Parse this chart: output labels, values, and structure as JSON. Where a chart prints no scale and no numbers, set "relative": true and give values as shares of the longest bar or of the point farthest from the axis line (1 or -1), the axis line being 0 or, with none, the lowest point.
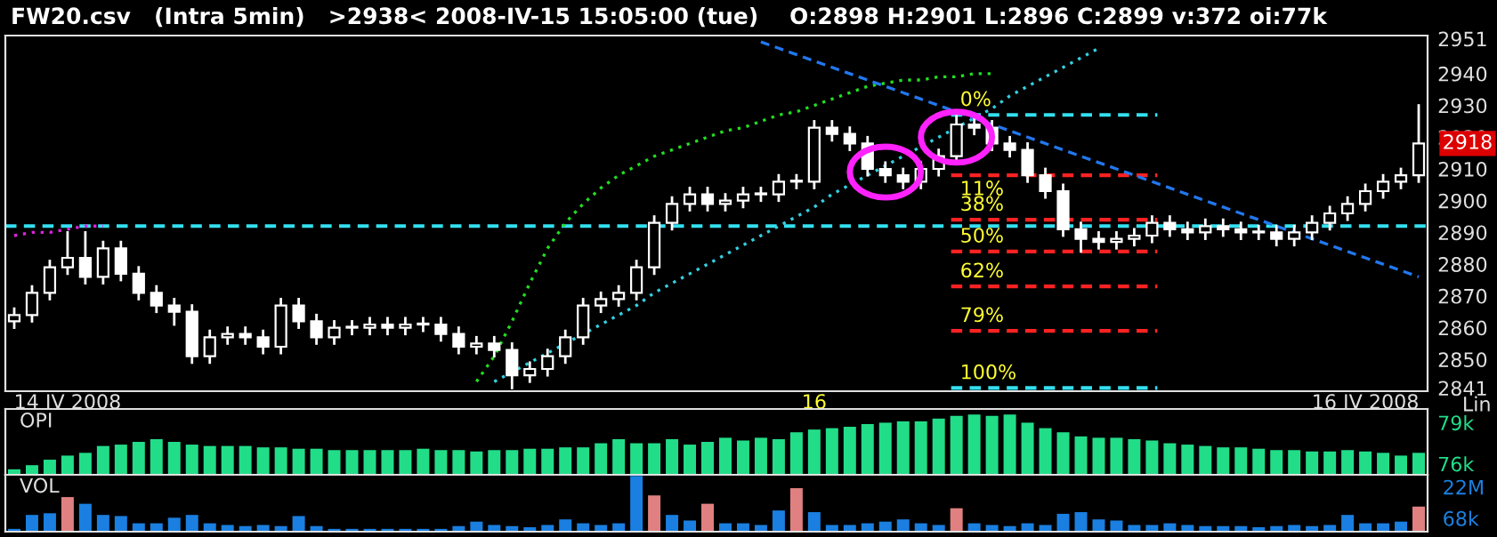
{
  "chart_data": [
    {
      "type": "candlestick",
      "title": "FW20.csv   (Intra 5min)   >2938< 2008-IV-15 15:05:00 (tue)    O:2898 H:2901 L:2896 C:2899 v:372 oi:77k",
      "categories": [
        null,
        null,
        null,
        "14 IV 2008",
        null,
        null,
        null,
        null,
        null,
        null,
        null,
        null,
        null,
        null,
        null,
        null,
        null,
        null,
        null,
        null,
        null,
        null,
        null,
        null,
        null,
        null,
        null,
        null,
        null,
        null,
        null,
        null,
        null,
        null,
        null,
        null,
        null,
        null,
        null,
        null,
        null,
        null,
        null,
        null,
        null,
        "16",
        null,
        null,
        null,
        null,
        null,
        null,
        null,
        null,
        null,
        null,
        null,
        null,
        null,
        null,
        null,
        null,
        null,
        null,
        null,
        null,
        null,
        null,
        null,
        null,
        null,
        null,
        null,
        null,
        null,
        null,
        "16 IV 2008",
        null,
        null,
        null
      ],
      "color": "#ffffff",
      "ohlc": [
        [
          2862,
          2866,
          2860,
          2864
        ],
        [
          2864,
          2873,
          2862,
          2871
        ],
        [
          2871,
          2881,
          2869,
          2879
        ],
        [
          2879,
          2890,
          2877,
          2882
        ],
        [
          2882,
          2890,
          2874,
          2876
        ],
        [
          2876,
          2887,
          2874,
          2885
        ],
        [
          2885,
          2887,
          2875,
          2877
        ],
        [
          2877,
          2879,
          2869,
          2871
        ],
        [
          2871,
          2873,
          2865,
          2867
        ],
        [
          2867,
          2869,
          2861,
          2865
        ],
        [
          2865,
          2867,
          2849,
          2851
        ],
        [
          2851,
          2859,
          2849,
          2857
        ],
        [
          2857,
          2860,
          2855,
          2858
        ],
        [
          2858,
          2860,
          2855,
          2857
        ],
        [
          2857,
          2859,
          2852,
          2854
        ],
        [
          2854,
          2869,
          2852,
          2867
        ],
        [
          2867,
          2869,
          2860,
          2862
        ],
        [
          2862,
          2864,
          2855,
          2857
        ],
        [
          2857,
          2862,
          2855,
          2860
        ],
        [
          2860,
          2862,
          2858,
          2860
        ],
        [
          2860,
          2863,
          2858,
          2861
        ],
        [
          2861,
          2863,
          2858,
          2860
        ],
        [
          2860,
          2863,
          2858,
          2861
        ],
        [
          2861,
          2863,
          2859,
          2861
        ],
        [
          2861,
          2863,
          2856,
          2858
        ],
        [
          2858,
          2860,
          2852,
          2854
        ],
        [
          2854,
          2857,
          2852,
          2855
        ],
        [
          2855,
          2857,
          2851,
          2853
        ],
        [
          2853,
          2855,
          2841,
          2845
        ],
        [
          2845,
          2849,
          2843,
          2847
        ],
        [
          2847,
          2853,
          2845,
          2851
        ],
        [
          2851,
          2859,
          2849,
          2857
        ],
        [
          2857,
          2869,
          2855,
          2867
        ],
        [
          2867,
          2871,
          2865,
          2869
        ],
        [
          2869,
          2873,
          2867,
          2871
        ],
        [
          2871,
          2881,
          2869,
          2879
        ],
        [
          2879,
          2895,
          2877,
          2893
        ],
        [
          2893,
          2901,
          2891,
          2899
        ],
        [
          2899,
          2904,
          2897,
          2902
        ],
        [
          2902,
          2904,
          2897,
          2899
        ],
        [
          2899,
          2902,
          2897,
          2900
        ],
        [
          2900,
          2904,
          2898,
          2902
        ],
        [
          2902,
          2904,
          2900,
          2902
        ],
        [
          2902,
          2908,
          2900,
          2906
        ],
        [
          2906,
          2908,
          2904,
          2906
        ],
        [
          2906,
          2925,
          2904,
          2923
        ],
        [
          2923,
          2925,
          2919,
          2921
        ],
        [
          2921,
          2923,
          2916,
          2918
        ],
        [
          2918,
          2920,
          2908,
          2910
        ],
        [
          2910,
          2912,
          2906,
          2908
        ],
        [
          2908,
          2910,
          2904,
          2906
        ],
        [
          2906,
          2912,
          2904,
          2910
        ],
        [
          2910,
          2916,
          2908,
          2914
        ],
        [
          2914,
          2928,
          2912,
          2924
        ],
        [
          2924,
          2926,
          2921,
          2923
        ],
        [
          2923,
          2925,
          2916,
          2918
        ],
        [
          2918,
          2920,
          2914,
          2916
        ],
        [
          2916,
          2918,
          2906,
          2908
        ],
        [
          2908,
          2910,
          2901,
          2903
        ],
        [
          2903,
          2905,
          2889,
          2891
        ],
        [
          2891,
          2893,
          2884,
          2888
        ],
        [
          2888,
          2890,
          2885,
          2887
        ],
        [
          2887,
          2890,
          2885,
          2888
        ],
        [
          2888,
          2891,
          2886,
          2889
        ],
        [
          2889,
          2895,
          2887,
          2893
        ],
        [
          2893,
          2895,
          2889,
          2891
        ],
        [
          2891,
          2893,
          2888,
          2890
        ],
        [
          2890,
          2894,
          2888,
          2892
        ],
        [
          2892,
          2894,
          2889,
          2891
        ],
        [
          2891,
          2893,
          2888,
          2890
        ],
        [
          2890,
          2892,
          2888,
          2890
        ],
        [
          2890,
          2892,
          2886,
          2888
        ],
        [
          2888,
          2892,
          2886,
          2890
        ],
        [
          2890,
          2895,
          2888,
          2893
        ],
        [
          2893,
          2898,
          2891,
          2896
        ],
        [
          2896,
          2901,
          2894,
          2899
        ],
        [
          2899,
          2905,
          2897,
          2903
        ],
        [
          2903,
          2908,
          2901,
          2906
        ],
        [
          2906,
          2910,
          2904,
          2908
        ],
        [
          2908,
          2930,
          2906,
          2918
        ]
      ],
      "series": [
        {
          "type": "line",
          "color": "#22dd22",
          "line_style": "dotted",
          "values": [
            null,
            null,
            null,
            null,
            null,
            null,
            null,
            null,
            null,
            null,
            null,
            null,
            null,
            null,
            null,
            null,
            null,
            null,
            null,
            null,
            null,
            null,
            null,
            null,
            null,
            null,
            2843,
            2851,
            2862,
            2874,
            2885,
            2893,
            2899,
            2904,
            2908,
            2911,
            2914,
            2916,
            2918,
            2920,
            2922,
            2923,
            2925,
            2927,
            2928,
            2930,
            2932,
            2934,
            2936,
            2937,
            2938,
            2938,
            2939,
            2939,
            2940,
            2940,
            null,
            null,
            null,
            null,
            null,
            null,
            null,
            null,
            null,
            null,
            null,
            null,
            null,
            null,
            null,
            null,
            null,
            null,
            null,
            null,
            null,
            null,
            null,
            null
          ]
        },
        {
          "type": "line",
          "color": "#33d0e0",
          "line_style": "dotted",
          "values": [
            null,
            null,
            null,
            null,
            null,
            null,
            null,
            null,
            null,
            null,
            null,
            null,
            null,
            null,
            null,
            null,
            null,
            null,
            null,
            null,
            null,
            null,
            null,
            null,
            null,
            null,
            null,
            2843,
            2846,
            2849,
            2852,
            2855,
            2858,
            2861,
            2864,
            2867,
            2871,
            2874,
            2877,
            2880,
            2883,
            2886,
            2889,
            2892,
            2895,
            2898,
            2902,
            2905,
            2908,
            2911,
            2914,
            2917,
            2920,
            2923,
            2926,
            2929,
            2933,
            2936,
            2939,
            2942,
            2945,
            2948,
            null,
            null,
            null,
            null,
            null,
            null,
            null,
            null,
            null,
            null,
            null,
            null,
            null,
            null,
            null,
            null,
            null,
            null
          ]
        },
        {
          "type": "line",
          "color": "#2277ee",
          "line_style": "dashed",
          "values": [
            null,
            null,
            null,
            null,
            null,
            null,
            null,
            null,
            null,
            null,
            null,
            null,
            null,
            null,
            null,
            null,
            null,
            null,
            null,
            null,
            null,
            null,
            null,
            null,
            null,
            null,
            null,
            null,
            null,
            null,
            null,
            null,
            null,
            null,
            null,
            null,
            null,
            null,
            null,
            null,
            null,
            null,
            2950,
            2948,
            2946,
            2944,
            2942,
            2940,
            2938,
            2936,
            2934,
            2932,
            2930,
            2928,
            2926,
            2924,
            2922,
            2920,
            2918,
            2916,
            2914,
            2912,
            2910,
            2908,
            2906,
            2904,
            2902,
            2900,
            2898,
            2896,
            2894,
            2892,
            2890,
            2888,
            2886,
            2884,
            2882,
            2880,
            2878,
            2876
          ]
        },
        {
          "type": "line",
          "color": "#dd22dd",
          "line_style": "dotted",
          "values": [
            2889,
            2890,
            2890,
            2891,
            2892,
            2892,
            null,
            null,
            null,
            null,
            null,
            null,
            null,
            null,
            null,
            null,
            null,
            null,
            null,
            null,
            null,
            null,
            null,
            null,
            null,
            null,
            null,
            null,
            null,
            null,
            null,
            null,
            null,
            null,
            null,
            null,
            null,
            null,
            null,
            null,
            null,
            null,
            null,
            null,
            null,
            null,
            null,
            null,
            null,
            null,
            null,
            null,
            null,
            null,
            null,
            null,
            null,
            null,
            null,
            null,
            null,
            null,
            null,
            null,
            null,
            null,
            null,
            null,
            null,
            null,
            null,
            null,
            null,
            null,
            null,
            null,
            null,
            null,
            null,
            null
          ]
        }
      ],
      "ylim": [
        2840,
        2952
      ],
      "yticks": [
        2841,
        2850,
        2860,
        2870,
        2880,
        2890,
        2900,
        2910,
        2920,
        2930,
        2940,
        2951
      ],
      "ref_lines": [
        {
          "axis": "y",
          "value": 2892,
          "color": "#33e0f0",
          "line_style": "dashed"
        },
        {
          "axis": "y",
          "value": 2927,
          "color": "#33e0f0",
          "line_style": "dashed"
        },
        {
          "axis": "y",
          "value": 2908,
          "color": "#ff2222",
          "line_style": "dashed"
        },
        {
          "axis": "y",
          "value": 2894,
          "color": "#ff2222",
          "line_style": "dashed"
        },
        {
          "axis": "y",
          "value": 2884,
          "color": "#ff2222",
          "line_style": "dashed"
        },
        {
          "axis": "y",
          "value": 2873,
          "color": "#ff2222",
          "line_style": "dashed"
        },
        {
          "axis": "y",
          "value": 2859,
          "color": "#ff2222",
          "line_style": "dashed"
        },
        {
          "axis": "y",
          "value": 2841,
          "color": "#33e0f0",
          "line_style": "dashed"
        }
      ],
      "annotations": [
        "Lin",
        "2918",
        {
          "text": "0%",
          "y": 2927
        },
        {
          "text": "11%",
          "y": 2908
        },
        {
          "text": "38%",
          "y": 2894
        },
        {
          "text": "50%",
          "y": 2884
        },
        {
          "text": "62%",
          "y": 2873
        },
        {
          "text": "79%",
          "y": 2859
        },
        {
          "text": "100%",
          "y": 2841
        }
      ]
    },
    {
      "type": "bar",
      "title": "OPI",
      "color": "#22dd88",
      "tick_labels": "y",
      "categories": [
        null,
        null,
        null,
        null,
        null,
        null,
        null,
        null,
        null,
        null,
        null,
        null,
        null,
        null,
        null,
        null,
        null,
        null,
        null,
        null,
        null,
        null,
        null,
        null,
        null,
        null,
        null,
        null,
        null,
        null,
        null,
        null,
        null,
        null,
        null,
        null,
        null,
        null,
        null,
        null,
        null,
        null,
        null,
        null,
        null,
        null,
        null,
        null,
        null,
        null,
        null,
        null,
        null,
        null,
        null,
        null,
        null,
        null,
        null,
        null,
        null,
        null,
        null,
        null,
        null,
        null,
        null,
        null,
        null,
        null,
        null,
        null,
        null,
        null,
        null,
        null,
        null,
        null,
        null,
        null
      ],
      "base": [
        75.2,
        75.2,
        75.2,
        75.2,
        75.2,
        75.2,
        75.2,
        75.2,
        75.2,
        75.2,
        75.2,
        75.2,
        75.2,
        75.2,
        75.2,
        75.2,
        75.2,
        75.2,
        75.2,
        75.2,
        75.2,
        75.2,
        75.2,
        75.2,
        75.2,
        75.2,
        75.2,
        75.2,
        75.2,
        75.2,
        75.2,
        75.2,
        75.2,
        75.2,
        75.2,
        75.2,
        75.2,
        75.2,
        75.2,
        75.2,
        75.2,
        75.2,
        75.2,
        75.2,
        75.2,
        75.2,
        75.2,
        75.2,
        75.2,
        75.2,
        75.2,
        75.2,
        75.2,
        75.2,
        75.2,
        75.2,
        75.2,
        75.2,
        75.2,
        75.2,
        75.2,
        75.2,
        75.2,
        75.2,
        75.2,
        75.2,
        75.2,
        75.2,
        75.2,
        75.2,
        75.2,
        75.2,
        75.2,
        75.2,
        75.2,
        75.2,
        75.2,
        75.2,
        75.2,
        75.2
      ],
      "values": [
        0.4,
        0.7,
        1.1,
        1.4,
        1.6,
        2.1,
        2.2,
        2.4,
        2.6,
        2.4,
        2.2,
        2.1,
        2.1,
        2.1,
        2.0,
        2.0,
        1.9,
        1.9,
        1.8,
        1.8,
        1.8,
        1.8,
        1.8,
        1.9,
        1.8,
        1.8,
        1.7,
        1.8,
        1.8,
        1.9,
        1.9,
        2.0,
        2.0,
        2.3,
        2.6,
        2.3,
        2.3,
        2.6,
        2.2,
        2.4,
        2.7,
        2.5,
        2.7,
        2.6,
        3.1,
        3.3,
        3.4,
        3.5,
        3.7,
        3.8,
        3.9,
        3.9,
        4.1,
        4.3,
        4.4,
        4.3,
        4.4,
        3.8,
        3.4,
        3.1,
        2.8,
        2.7,
        2.7,
        2.6,
        2.5,
        2.3,
        2.2,
        2.1,
        2.0,
        2.0,
        1.9,
        1.8,
        1.8,
        1.7,
        1.7,
        1.8,
        1.7,
        1.6,
        1.4,
        1.6
      ],
      "ylim": [
        75.2,
        80.0
      ],
      "yticks": [
        {
          "value": 76,
          "label": "76k"
        },
        {
          "value": 79,
          "label": "79k"
        }
      ]
    },
    {
      "type": "bar",
      "title": "VOL",
      "relative": true,
      "tick_labels": false,
      "categories": [
        null,
        null,
        null,
        null,
        null,
        null,
        null,
        null,
        null,
        null,
        null,
        null,
        null,
        null,
        null,
        null,
        null,
        null,
        null,
        null,
        null,
        null,
        null,
        null,
        null,
        null,
        null,
        null,
        null,
        null,
        null,
        null,
        null,
        null,
        null,
        null,
        null,
        null,
        null,
        null,
        null,
        null,
        null,
        null,
        null,
        null,
        null,
        null,
        null,
        null,
        null,
        null,
        null,
        null,
        null,
        null,
        null,
        null,
        null,
        null,
        null,
        null,
        null,
        null,
        null,
        null,
        null,
        null,
        null,
        null,
        null,
        null,
        null,
        null,
        null,
        null,
        null,
        null,
        null,
        null
      ],
      "values": [
        0.05,
        0.3,
        0.33,
        0.62,
        0.5,
        0.3,
        0.28,
        0.15,
        0.15,
        0.25,
        0.3,
        0.15,
        0.12,
        0.1,
        0.12,
        0.1,
        0.28,
        0.1,
        0.05,
        0.05,
        0.05,
        0.05,
        0.05,
        0.05,
        0.05,
        0.1,
        0.18,
        0.12,
        0.1,
        0.08,
        0.12,
        0.22,
        0.15,
        0.12,
        0.15,
        1.0,
        0.65,
        0.3,
        0.2,
        0.5,
        0.15,
        0.15,
        0.12,
        0.38,
        0.78,
        0.35,
        0.12,
        0.12,
        0.15,
        0.18,
        0.22,
        0.15,
        0.12,
        0.42,
        0.15,
        0.12,
        0.1,
        0.15,
        0.12,
        0.32,
        0.35,
        0.22,
        0.2,
        0.12,
        0.12,
        0.15,
        0.12,
        0.1,
        0.1,
        0.1,
        0.08,
        0.1,
        0.12,
        0.1,
        0.12,
        0.3,
        0.15,
        0.15,
        0.18,
        0.45
      ],
      "colors": [
        "#1a7fe0",
        "#1a7fe0",
        "#1a7fe0",
        "#e08080",
        "#1a7fe0",
        "#1a7fe0",
        "#1a7fe0",
        "#1a7fe0",
        "#1a7fe0",
        "#1a7fe0",
        "#1a7fe0",
        "#1a7fe0",
        "#1a7fe0",
        "#1a7fe0",
        "#1a7fe0",
        "#1a7fe0",
        "#1a7fe0",
        "#1a7fe0",
        "#1a7fe0",
        "#1a7fe0",
        "#1a7fe0",
        "#1a7fe0",
        "#1a7fe0",
        "#1a7fe0",
        "#1a7fe0",
        "#1a7fe0",
        "#1a7fe0",
        "#1a7fe0",
        "#1a7fe0",
        "#1a7fe0",
        "#1a7fe0",
        "#1a7fe0",
        "#1a7fe0",
        "#1a7fe0",
        "#1a7fe0",
        "#1a7fe0",
        "#e08080",
        "#1a7fe0",
        "#1a7fe0",
        "#e08080",
        "#1a7fe0",
        "#1a7fe0",
        "#1a7fe0",
        "#1a7fe0",
        "#e08080",
        "#1a7fe0",
        "#1a7fe0",
        "#1a7fe0",
        "#1a7fe0",
        "#1a7fe0",
        "#1a7fe0",
        "#1a7fe0",
        "#1a7fe0",
        "#e08080",
        "#1a7fe0",
        "#1a7fe0",
        "#1a7fe0",
        "#1a7fe0",
        "#1a7fe0",
        "#1a7fe0",
        "#1a7fe0",
        "#1a7fe0",
        "#1a7fe0",
        "#1a7fe0",
        "#1a7fe0",
        "#1a7fe0",
        "#1a7fe0",
        "#1a7fe0",
        "#1a7fe0",
        "#1a7fe0",
        "#1a7fe0",
        "#1a7fe0",
        "#1a7fe0",
        "#1a7fe0",
        "#1a7fe0",
        "#1a7fe0",
        "#1a7fe0",
        "#1a7fe0",
        "#1a7fe0",
        "#e08080"
      ],
      "annotations": [
        "22M",
        "68k"
      ]
    }
  ]
}
